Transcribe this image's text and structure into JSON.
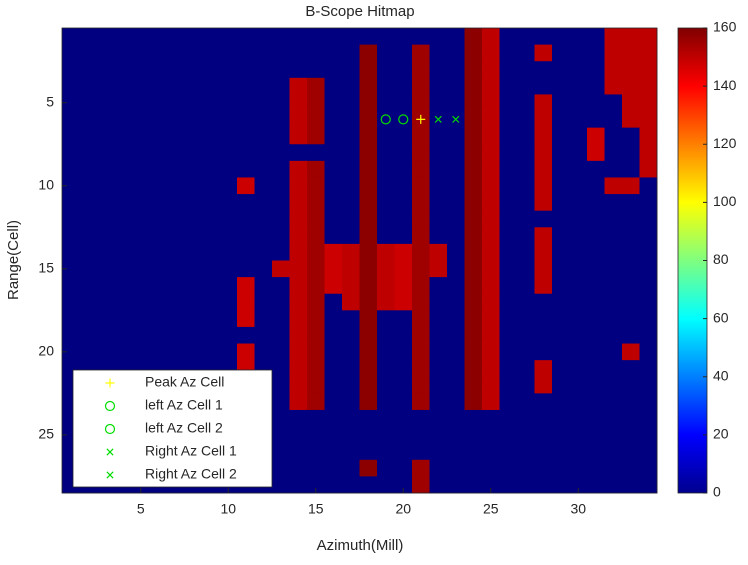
{
  "chart_data": {
    "type": "heatmap",
    "title": "B-Scope Hitmap",
    "xlabel": "Azimuth(Mill)",
    "ylabel": "Range(Cell)",
    "x": [
      1,
      2,
      3,
      4,
      5,
      6,
      7,
      8,
      9,
      10,
      11,
      12,
      13,
      14,
      15,
      16,
      17,
      18,
      19,
      20,
      21,
      22,
      23,
      24,
      25,
      26,
      27,
      28,
      29,
      30,
      31,
      32,
      33,
      34
    ],
    "y": [
      1,
      2,
      3,
      4,
      5,
      6,
      7,
      8,
      9,
      10,
      11,
      12,
      13,
      14,
      15,
      16,
      17,
      18,
      19,
      20,
      21,
      22,
      23,
      24,
      25,
      26,
      27,
      28
    ],
    "xlim": [
      0.5,
      34.5
    ],
    "ylim": [
      0.5,
      28.5
    ],
    "y_reversed": true,
    "xticks": [
      5,
      10,
      15,
      20,
      25,
      30
    ],
    "yticks": [
      5,
      10,
      15,
      20,
      25
    ],
    "clim": [
      0,
      160
    ],
    "colorbar_ticks": [
      0,
      20,
      40,
      60,
      80,
      100,
      120,
      140,
      160
    ],
    "colormap": "jet",
    "z": [
      [
        0,
        0,
        0,
        0,
        0,
        0,
        0,
        0,
        0,
        0,
        0,
        0,
        0,
        0,
        0,
        0,
        0,
        0,
        0,
        0,
        0,
        0,
        0,
        158,
        150,
        0,
        0,
        0,
        0,
        0,
        0,
        150,
        150,
        150
      ],
      [
        0,
        0,
        0,
        0,
        0,
        0,
        0,
        0,
        0,
        0,
        0,
        0,
        0,
        0,
        0,
        0,
        0,
        158,
        0,
        0,
        155,
        0,
        0,
        158,
        150,
        0,
        0,
        150,
        0,
        0,
        0,
        150,
        150,
        150
      ],
      [
        0,
        0,
        0,
        0,
        0,
        0,
        0,
        0,
        0,
        0,
        0,
        0,
        0,
        0,
        0,
        0,
        0,
        158,
        0,
        0,
        155,
        0,
        0,
        158,
        150,
        0,
        0,
        0,
        0,
        0,
        0,
        150,
        150,
        150
      ],
      [
        0,
        0,
        0,
        0,
        0,
        0,
        0,
        0,
        0,
        0,
        0,
        0,
        0,
        150,
        155,
        0,
        0,
        158,
        0,
        0,
        155,
        0,
        0,
        158,
        150,
        0,
        0,
        0,
        0,
        0,
        0,
        150,
        150,
        150
      ],
      [
        0,
        0,
        0,
        0,
        0,
        0,
        0,
        0,
        0,
        0,
        0,
        0,
        0,
        150,
        155,
        0,
        0,
        158,
        0,
        0,
        155,
        0,
        0,
        158,
        150,
        0,
        0,
        150,
        0,
        0,
        0,
        0,
        150,
        150
      ],
      [
        0,
        0,
        0,
        0,
        0,
        0,
        0,
        0,
        0,
        0,
        0,
        0,
        0,
        150,
        155,
        0,
        0,
        158,
        0,
        0,
        155,
        0,
        0,
        158,
        150,
        0,
        0,
        150,
        0,
        0,
        0,
        0,
        150,
        150
      ],
      [
        0,
        0,
        0,
        0,
        0,
        0,
        0,
        0,
        0,
        0,
        0,
        0,
        0,
        150,
        155,
        0,
        0,
        158,
        0,
        0,
        155,
        0,
        0,
        158,
        150,
        0,
        0,
        150,
        0,
        0,
        148,
        0,
        0,
        150
      ],
      [
        0,
        0,
        0,
        0,
        0,
        0,
        0,
        0,
        0,
        0,
        0,
        0,
        0,
        0,
        0,
        0,
        0,
        158,
        0,
        0,
        155,
        0,
        0,
        158,
        150,
        0,
        0,
        150,
        0,
        0,
        148,
        0,
        0,
        150
      ],
      [
        0,
        0,
        0,
        0,
        0,
        0,
        0,
        0,
        0,
        0,
        0,
        0,
        0,
        150,
        155,
        0,
        0,
        158,
        0,
        0,
        155,
        0,
        0,
        158,
        150,
        0,
        0,
        150,
        0,
        0,
        0,
        0,
        0,
        150
      ],
      [
        0,
        0,
        0,
        0,
        0,
        0,
        0,
        0,
        0,
        0,
        148,
        0,
        0,
        150,
        155,
        0,
        0,
        158,
        0,
        0,
        155,
        0,
        0,
        158,
        150,
        0,
        0,
        150,
        0,
        0,
        0,
        150,
        150,
        0
      ],
      [
        0,
        0,
        0,
        0,
        0,
        0,
        0,
        0,
        0,
        0,
        0,
        0,
        0,
        150,
        155,
        0,
        0,
        158,
        0,
        0,
        155,
        0,
        0,
        158,
        150,
        0,
        0,
        150,
        0,
        0,
        0,
        0,
        0,
        0
      ],
      [
        0,
        0,
        0,
        0,
        0,
        0,
        0,
        0,
        0,
        0,
        0,
        0,
        0,
        150,
        155,
        0,
        0,
        158,
        0,
        0,
        155,
        0,
        0,
        158,
        150,
        0,
        0,
        0,
        0,
        0,
        0,
        0,
        0,
        0
      ],
      [
        0,
        0,
        0,
        0,
        0,
        0,
        0,
        0,
        0,
        0,
        0,
        0,
        0,
        150,
        155,
        0,
        0,
        158,
        0,
        0,
        155,
        0,
        0,
        158,
        150,
        0,
        0,
        150,
        0,
        0,
        0,
        0,
        0,
        0
      ],
      [
        0,
        0,
        0,
        0,
        0,
        0,
        0,
        0,
        0,
        0,
        0,
        0,
        0,
        150,
        155,
        148,
        150,
        158,
        150,
        148,
        155,
        150,
        0,
        158,
        150,
        0,
        0,
        150,
        0,
        0,
        0,
        0,
        0,
        0
      ],
      [
        0,
        0,
        0,
        0,
        0,
        0,
        0,
        0,
        0,
        0,
        0,
        0,
        150,
        150,
        155,
        148,
        150,
        158,
        150,
        148,
        155,
        150,
        0,
        158,
        150,
        0,
        0,
        150,
        0,
        0,
        0,
        0,
        0,
        0
      ],
      [
        0,
        0,
        0,
        0,
        0,
        0,
        0,
        0,
        0,
        0,
        148,
        0,
        0,
        150,
        155,
        148,
        150,
        158,
        150,
        148,
        155,
        0,
        0,
        158,
        150,
        0,
        0,
        150,
        0,
        0,
        0,
        0,
        0,
        0
      ],
      [
        0,
        0,
        0,
        0,
        0,
        0,
        0,
        0,
        0,
        0,
        148,
        0,
        0,
        150,
        155,
        0,
        150,
        158,
        150,
        148,
        155,
        0,
        0,
        158,
        150,
        0,
        0,
        0,
        0,
        0,
        0,
        0,
        0,
        0
      ],
      [
        0,
        0,
        0,
        0,
        0,
        0,
        0,
        0,
        0,
        0,
        148,
        0,
        0,
        150,
        155,
        0,
        0,
        158,
        0,
        0,
        155,
        0,
        0,
        158,
        150,
        0,
        0,
        0,
        0,
        0,
        0,
        0,
        0,
        0
      ],
      [
        0,
        0,
        0,
        0,
        0,
        0,
        0,
        0,
        0,
        0,
        0,
        0,
        0,
        150,
        155,
        0,
        0,
        158,
        0,
        0,
        155,
        0,
        0,
        158,
        150,
        0,
        0,
        0,
        0,
        0,
        0,
        0,
        0,
        0
      ],
      [
        0,
        0,
        0,
        0,
        0,
        0,
        0,
        0,
        0,
        0,
        148,
        0,
        0,
        150,
        155,
        0,
        0,
        158,
        0,
        0,
        155,
        0,
        0,
        158,
        150,
        0,
        0,
        0,
        0,
        0,
        0,
        0,
        150,
        0
      ],
      [
        0,
        0,
        0,
        0,
        0,
        0,
        0,
        0,
        0,
        0,
        148,
        0,
        0,
        150,
        155,
        0,
        0,
        158,
        0,
        0,
        155,
        0,
        0,
        158,
        150,
        0,
        0,
        150,
        0,
        0,
        0,
        0,
        0,
        0
      ],
      [
        0,
        0,
        0,
        0,
        0,
        0,
        0,
        0,
        0,
        0,
        0,
        0,
        0,
        150,
        155,
        0,
        0,
        158,
        0,
        0,
        155,
        0,
        0,
        158,
        150,
        0,
        0,
        150,
        0,
        0,
        0,
        0,
        0,
        0
      ],
      [
        0,
        0,
        0,
        0,
        0,
        0,
        0,
        0,
        0,
        0,
        0,
        0,
        0,
        150,
        155,
        0,
        0,
        158,
        0,
        0,
        155,
        0,
        0,
        158,
        150,
        0,
        0,
        0,
        0,
        0,
        0,
        0,
        0,
        0
      ],
      [
        0,
        0,
        0,
        0,
        0,
        0,
        0,
        0,
        0,
        0,
        0,
        0,
        0,
        0,
        0,
        0,
        0,
        0,
        0,
        0,
        0,
        0,
        0,
        0,
        0,
        0,
        0,
        0,
        0,
        0,
        0,
        0,
        0,
        0
      ],
      [
        0,
        0,
        0,
        0,
        0,
        0,
        0,
        0,
        0,
        0,
        0,
        0,
        0,
        0,
        0,
        0,
        0,
        0,
        0,
        0,
        0,
        0,
        0,
        0,
        0,
        0,
        0,
        0,
        0,
        0,
        0,
        0,
        0,
        0
      ],
      [
        0,
        0,
        0,
        0,
        0,
        0,
        0,
        0,
        0,
        0,
        0,
        0,
        0,
        0,
        0,
        0,
        0,
        0,
        0,
        0,
        0,
        0,
        0,
        0,
        0,
        0,
        0,
        0,
        0,
        0,
        0,
        0,
        0,
        0
      ],
      [
        0,
        0,
        0,
        0,
        0,
        0,
        0,
        0,
        0,
        0,
        0,
        0,
        0,
        0,
        0,
        0,
        0,
        158,
        0,
        0,
        155,
        0,
        0,
        0,
        0,
        0,
        0,
        0,
        0,
        0,
        0,
        0,
        0,
        0
      ],
      [
        0,
        0,
        0,
        0,
        0,
        0,
        0,
        0,
        0,
        0,
        0,
        0,
        0,
        0,
        0,
        0,
        0,
        0,
        0,
        0,
        155,
        0,
        0,
        0,
        0,
        0,
        0,
        0,
        0,
        0,
        0,
        0,
        0,
        0
      ]
    ],
    "series": [
      {
        "name": "Peak Az Cell",
        "marker": "+",
        "color": "#ffff00",
        "x": [
          21
        ],
        "y": [
          6
        ]
      },
      {
        "name": "left Az Cell 1",
        "marker": "o",
        "color": "#00dd00",
        "x": [
          19
        ],
        "y": [
          6
        ]
      },
      {
        "name": "left Az Cell 2",
        "marker": "o",
        "color": "#00dd00",
        "x": [
          20
        ],
        "y": [
          6
        ]
      },
      {
        "name": "Right Az Cell 1",
        "marker": "x",
        "color": "#00dd00",
        "x": [
          22
        ],
        "y": [
          6
        ]
      },
      {
        "name": "Right Az Cell 2",
        "marker": "x",
        "color": "#00dd00",
        "x": [
          23
        ],
        "y": [
          6
        ]
      }
    ],
    "legend": "lower left"
  }
}
